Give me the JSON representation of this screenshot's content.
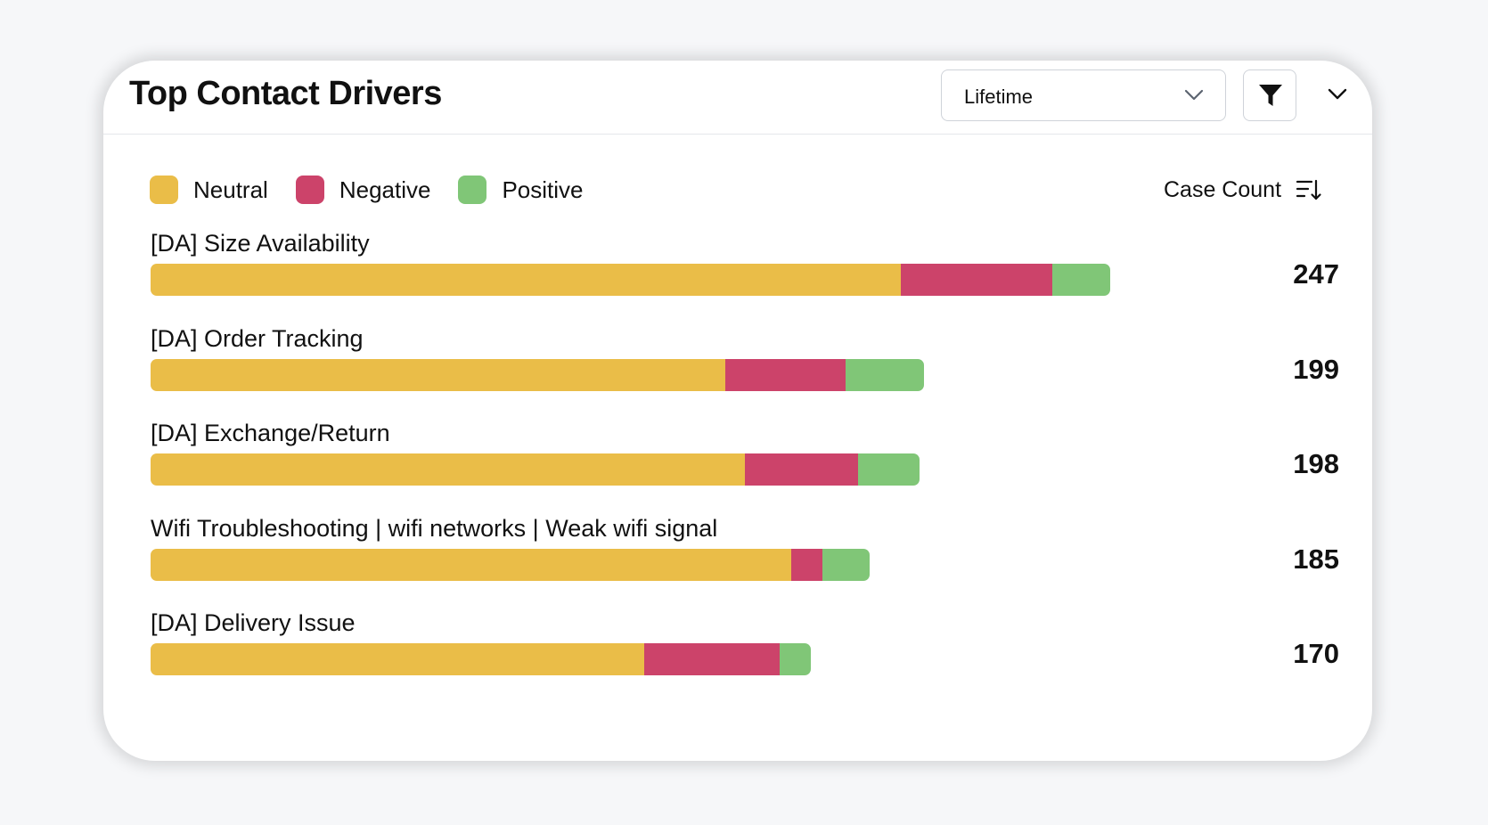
{
  "widget": {
    "title": "Top Contact Drivers",
    "range_select": {
      "value": "Lifetime",
      "icon": "chevron-down-icon"
    },
    "filter_button": {
      "icon": "filter-funnel-icon"
    },
    "collapse_button": {
      "icon": "chevron-down-icon"
    }
  },
  "legend": [
    {
      "label": "Neutral",
      "color": "#eabd48"
    },
    {
      "label": "Negative",
      "color": "#cc436a"
    },
    {
      "label": "Positive",
      "color": "#80c677"
    }
  ],
  "sort": {
    "label": "Case Count",
    "icon": "sort-descending-icon"
  },
  "chart_data": {
    "type": "bar",
    "orientation": "horizontal",
    "stacked": true,
    "categories": [
      "[DA] Size Availability",
      "[DA] Order Tracking",
      "[DA] Exchange/Return",
      "Wifi Troubleshooting | wifi networks | Weak wifi signal",
      "[DA] Delivery Issue"
    ],
    "totals": [
      247,
      199,
      198,
      185,
      170
    ],
    "series": [
      {
        "name": "Neutral",
        "color": "#eabd48",
        "values": [
          193,
          148,
          153,
          165,
          127
        ]
      },
      {
        "name": "Negative",
        "color": "#cc436a",
        "values": [
          39,
          31,
          29,
          8,
          35
        ]
      },
      {
        "name": "Positive",
        "color": "#80c677",
        "values": [
          15,
          20,
          16,
          12,
          8
        ]
      }
    ],
    "xlim": [
      0,
      247
    ],
    "legend_position": "top-left",
    "grid": false
  }
}
